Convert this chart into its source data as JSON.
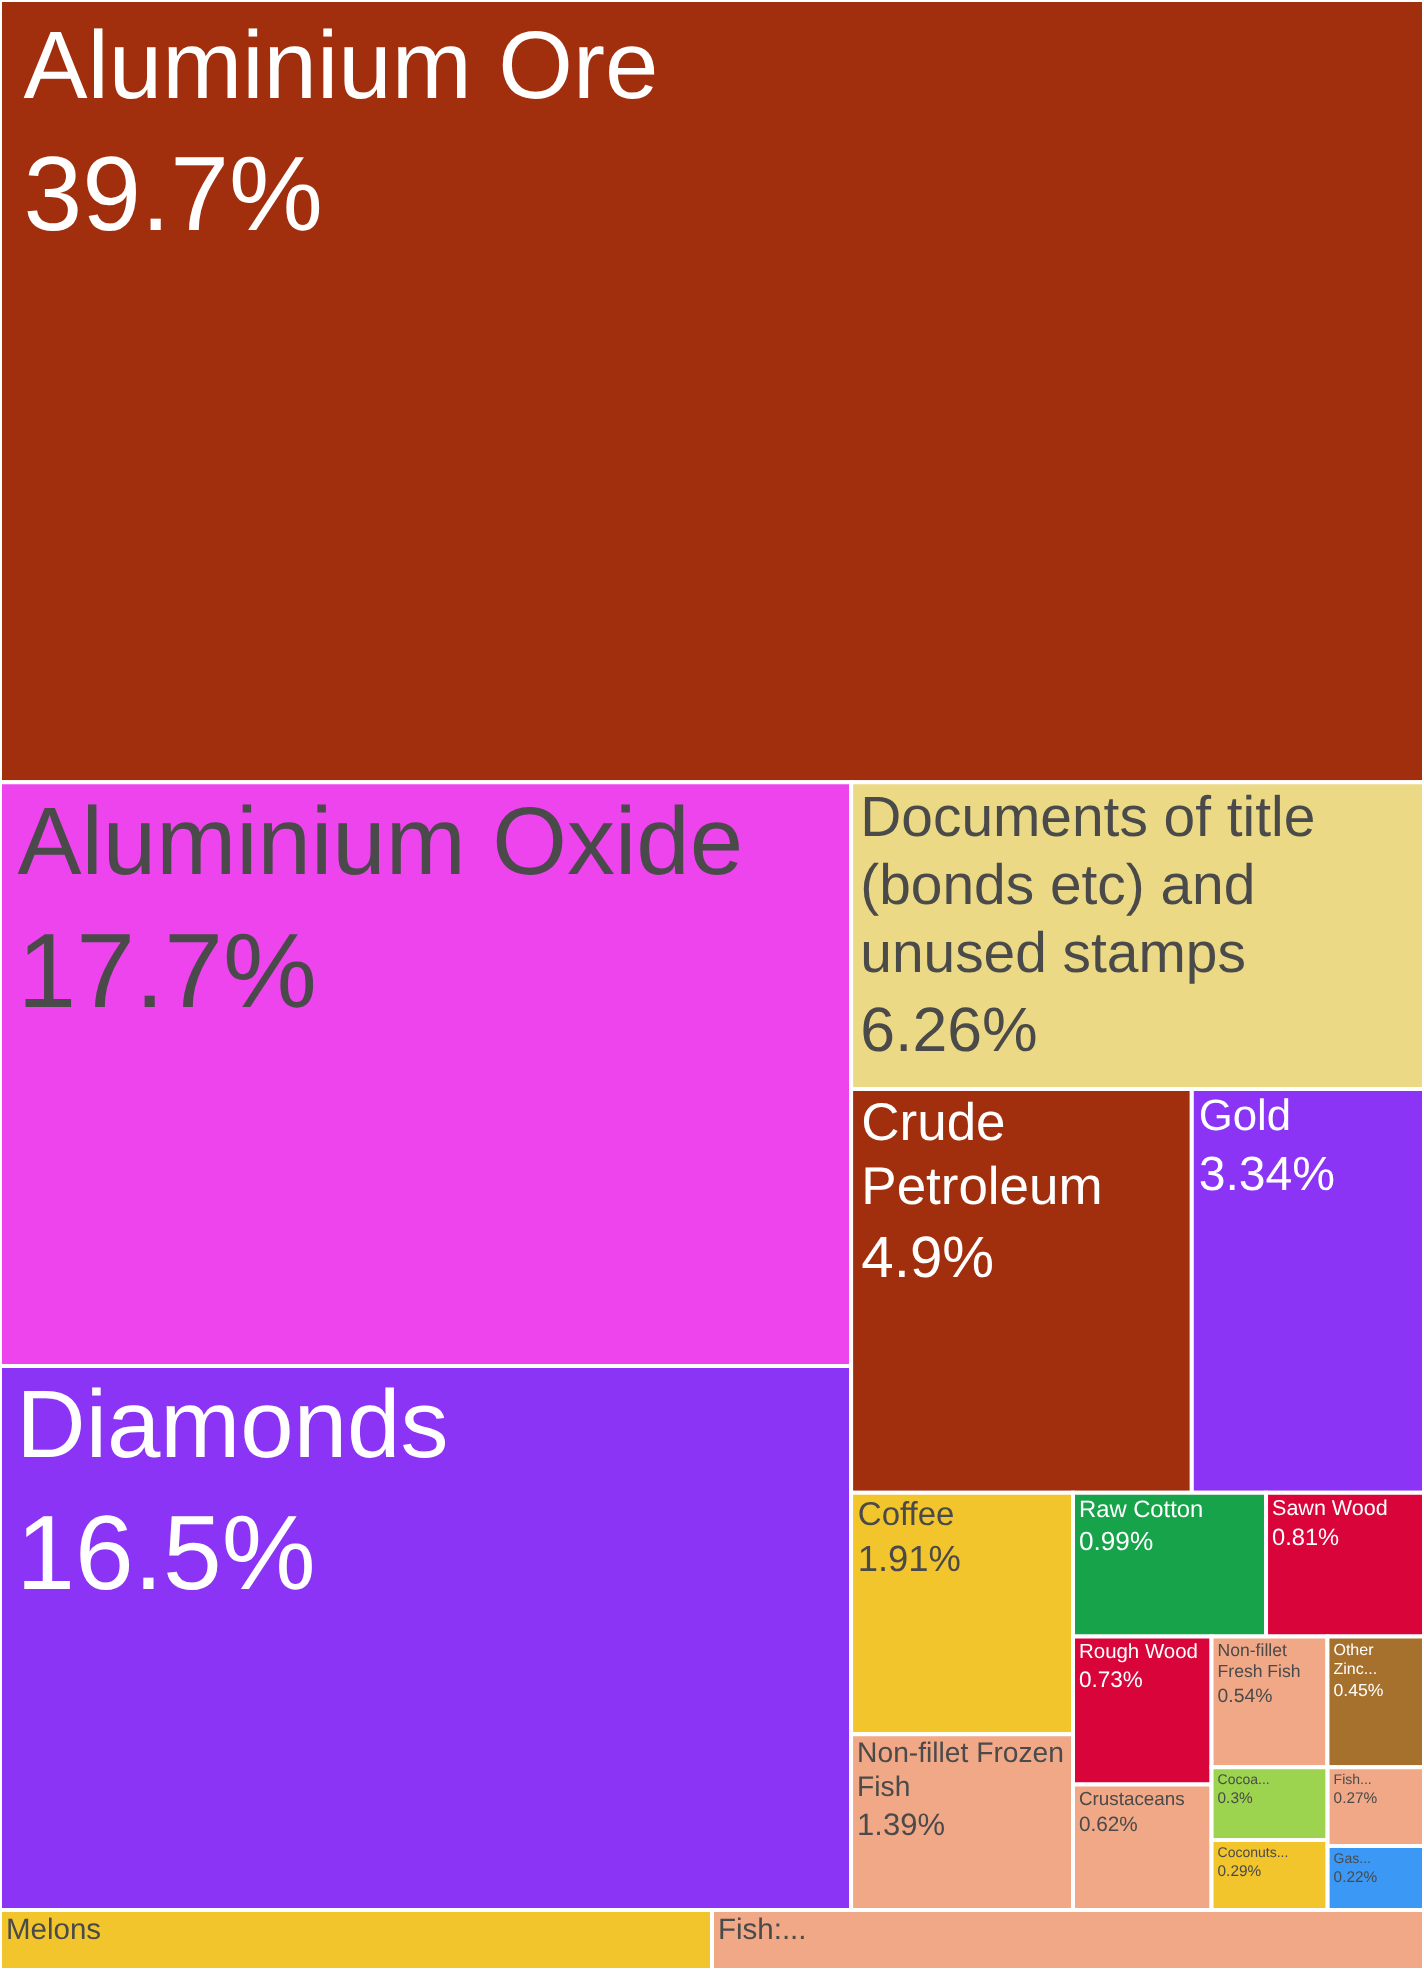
{
  "chart_data": {
    "type": "other",
    "categories": [
      "Aluminium Ore",
      "Aluminium Oxide",
      "Diamonds",
      "Documents of title (bonds etc) and unused stamps",
      "Crude Petroleum",
      "Gold",
      "Coffee",
      "Non-fillet Frozen Fish",
      "Raw Cotton",
      "Sawn Wood",
      "Rough Wood",
      "Crustaceans",
      "Non-fillet Fresh Fish",
      "Other Zinc...",
      "Cocoa...",
      "Coconuts...",
      "Fish...",
      "Gas...",
      "Melons",
      "Fish:..."
    ],
    "values": [
      39.7,
      17.7,
      16.5,
      6.26,
      4.9,
      3.34,
      1.91,
      1.39,
      0.99,
      0.81,
      0.73,
      0.62,
      0.54,
      0.45,
      0.3,
      0.29,
      0.27,
      0.22,
      null,
      null
    ],
    "value_labels": [
      "39.7%",
      "17.7%",
      "16.5%",
      "6.26%",
      "4.9%",
      "3.34%",
      "1.91%",
      "1.39%",
      "0.99%",
      "0.81%",
      "0.73%",
      "0.62%",
      "0.54%",
      "0.45%",
      "0.3%",
      "0.29%",
      "0.27%",
      "0.22%",
      null,
      null
    ],
    "colors": [
      "#a12e0d",
      "#ee44ee",
      "#8b34f5",
      "#ecd985",
      "#a12e0d",
      "#8b34f5",
      "#f2c52c",
      "#f0a886",
      "#16a34a",
      "#d9043a",
      "#d9043a",
      "#f0a886",
      "#f0a886",
      "#a6702d",
      "#9cd44f",
      "#f2c52c",
      "#f0a886",
      "#3b99f5",
      "#f2c52c",
      "#f0a886"
    ]
  }
}
